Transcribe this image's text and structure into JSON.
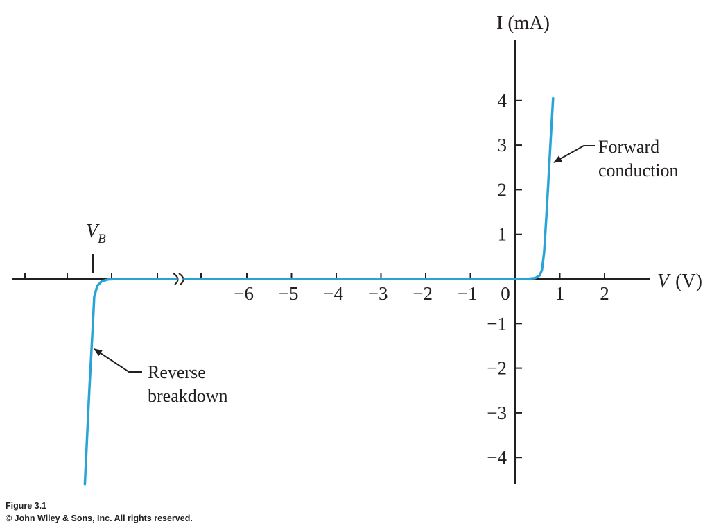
{
  "chart_data": {
    "type": "line",
    "title": "",
    "xlabel_var": "V",
    "xlabel_unit": "(V)",
    "ylabel": "I (mA)",
    "x_ticks": [
      -6,
      -5,
      -4,
      -3,
      -2,
      -1,
      0,
      1,
      2
    ],
    "x_tick_labels": [
      "−6",
      "−5",
      "−4",
      "−3",
      "−2",
      "−1",
      "0",
      "1",
      "2"
    ],
    "y_ticks": [
      4,
      3,
      2,
      1,
      -1,
      -2,
      -3,
      -4
    ],
    "y_tick_labels": [
      "4",
      "3",
      "2",
      "1",
      "−1",
      "−2",
      "−3",
      "−4"
    ],
    "xlim": [
      -6.5,
      3.0
    ],
    "ylim": [
      -4.6,
      4.1
    ],
    "axis_break": "x-axis broken between breakdown region and −6 V",
    "grid": false,
    "series": [
      {
        "color": "#2aa3d6",
        "x": [
          -6.5,
          -1,
          0,
          0.3,
          0.45,
          0.55,
          0.6,
          0.65,
          0.7,
          0.75,
          0.8,
          0.85
        ],
        "y": [
          0,
          0,
          0,
          0.005,
          0.02,
          0.08,
          0.2,
          0.6,
          1.4,
          2.3,
          3.2,
          4.05
        ]
      }
    ],
    "breakdown_series": {
      "color": "#2aa3d6",
      "x_offsets_from_VB": [
        0.55,
        0.35,
        0.2,
        0.1,
        0.03,
        0,
        -0.08,
        -0.18
      ],
      "y": [
        0,
        -0.01,
        -0.05,
        -0.15,
        -0.4,
        -1.0,
        -2.5,
        -4.6
      ]
    },
    "annotations": {
      "vb_main": "V",
      "vb_sub": "B",
      "forward_line1": "Forward",
      "forward_line2": "conduction",
      "reverse_line1": "Reverse",
      "reverse_line2": "breakdown"
    }
  },
  "caption": {
    "figure": "Figure 3.1",
    "copyright": "© John Wiley & Sons, Inc. All rights reserved."
  },
  "colors": {
    "curve": "#2aa3d6",
    "axis": "#231f20",
    "text": "#231f20"
  }
}
